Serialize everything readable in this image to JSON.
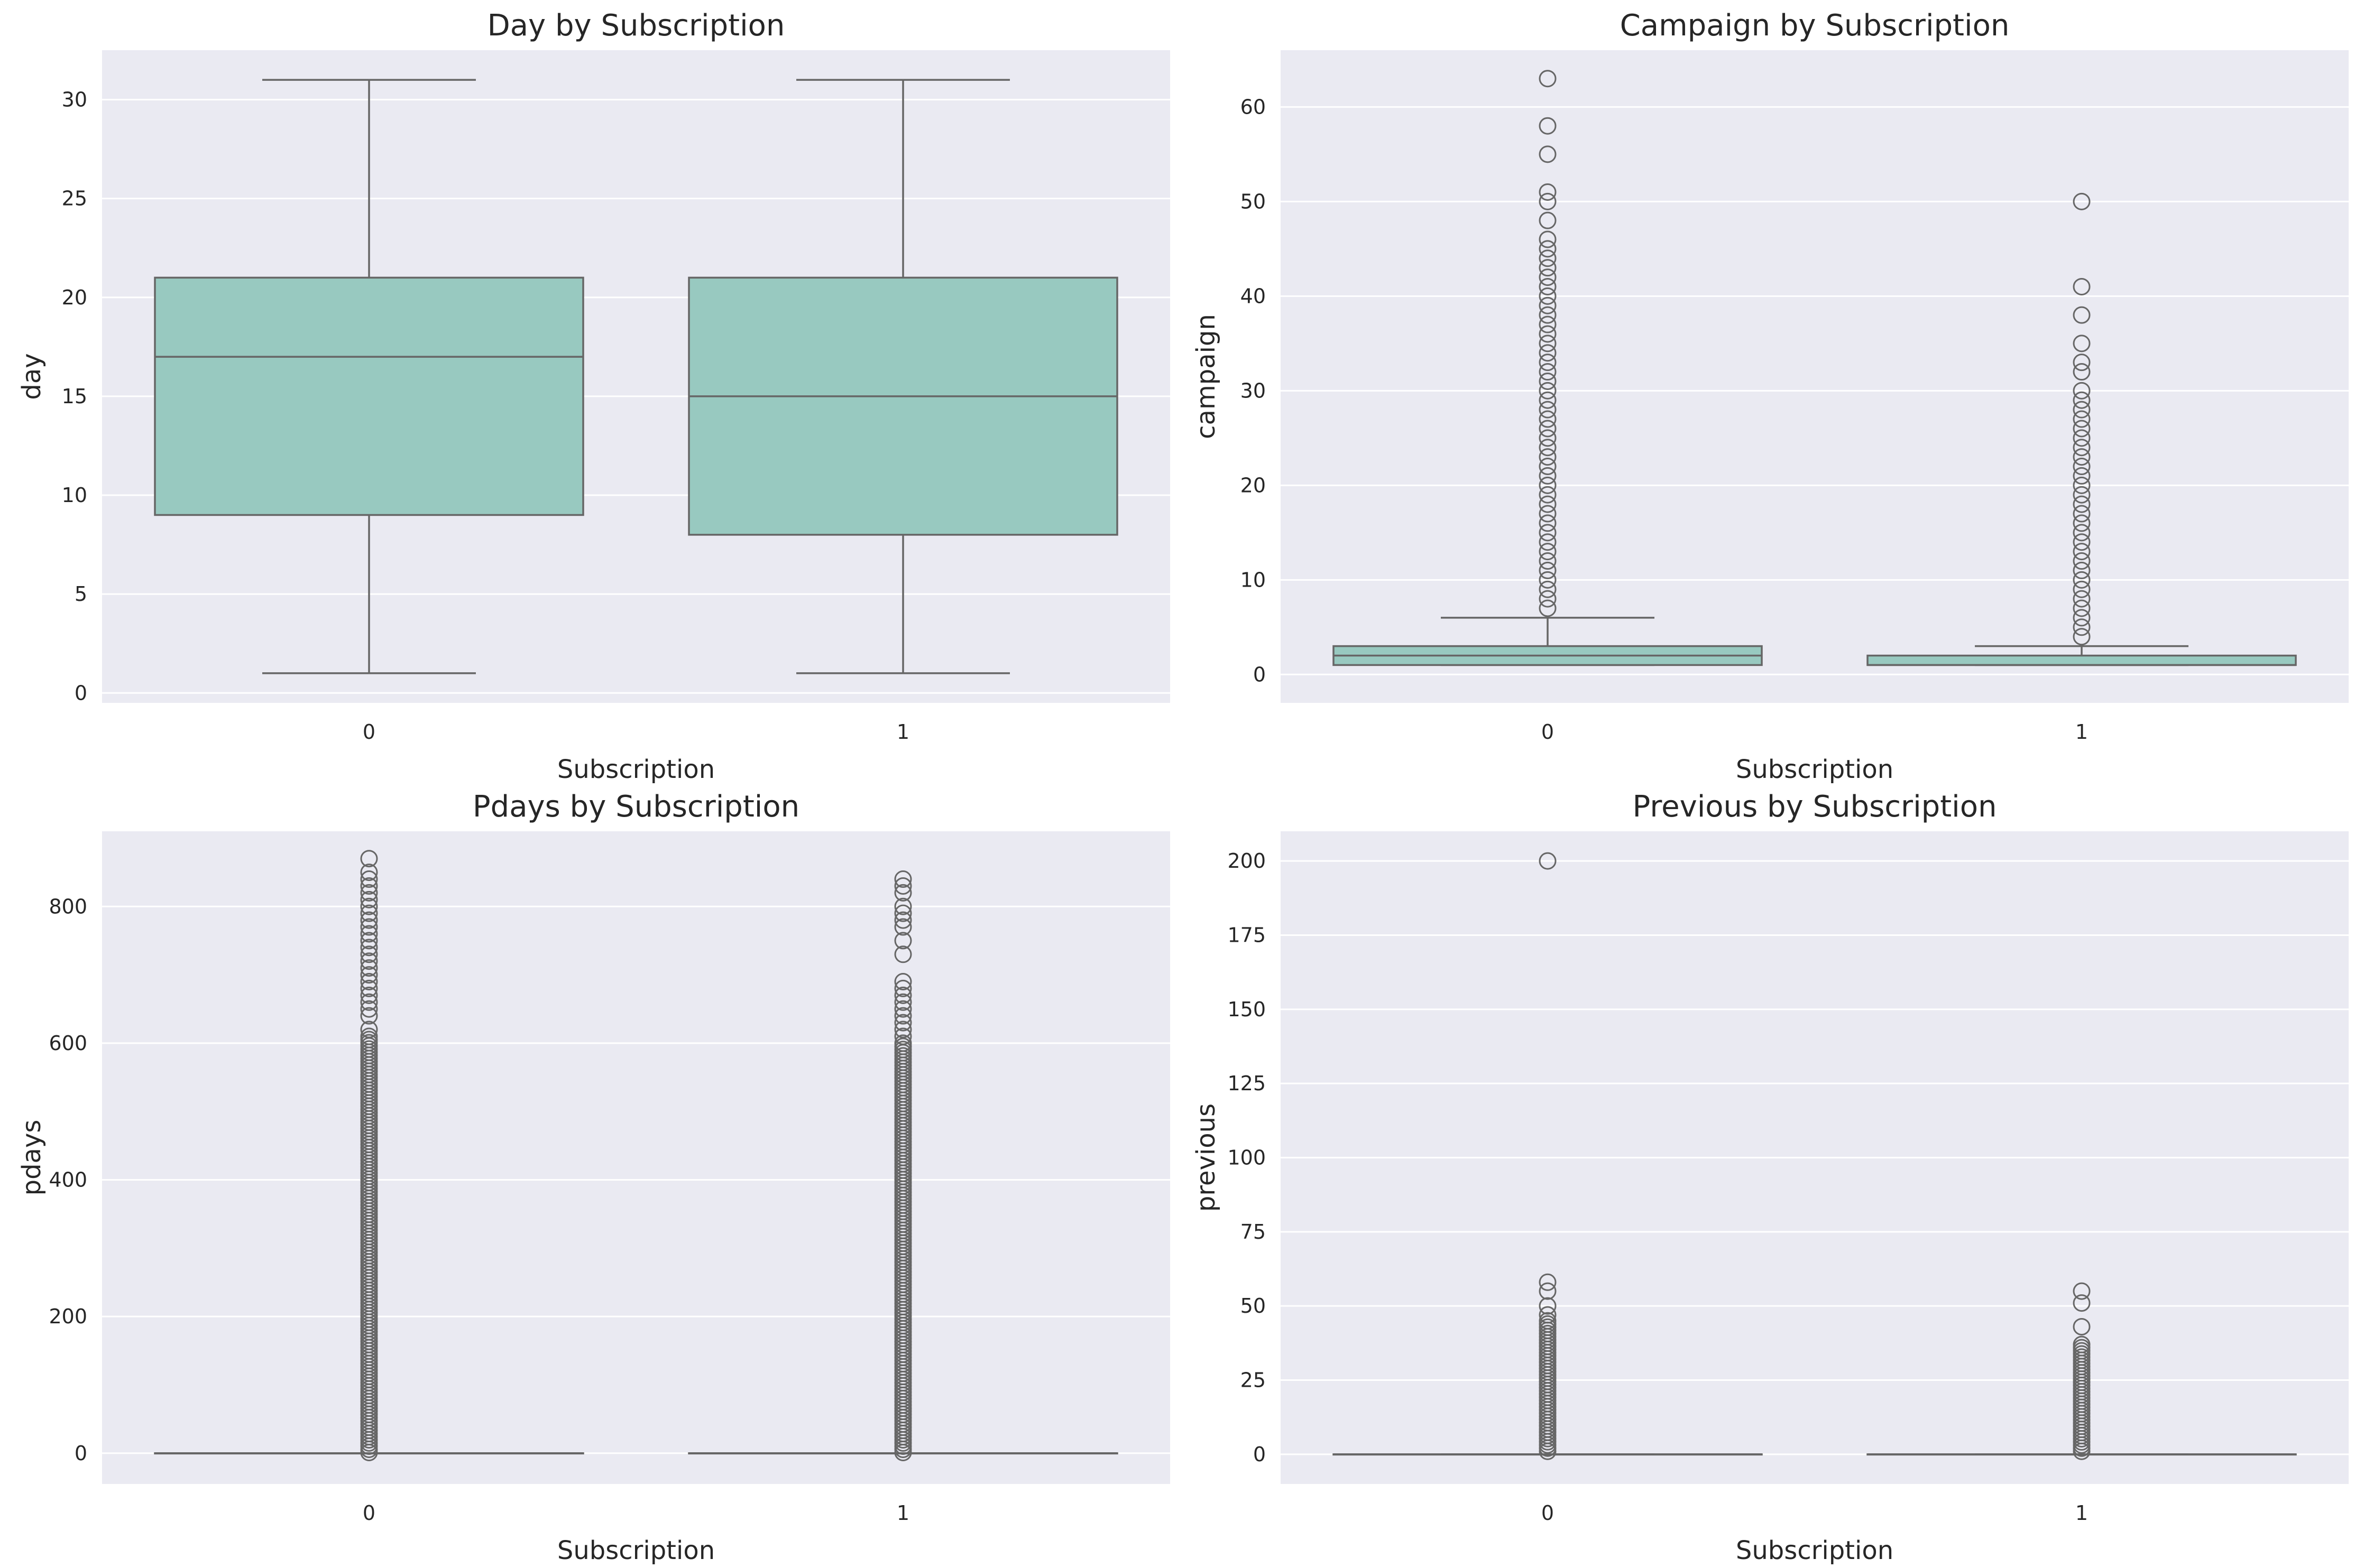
{
  "chart_data": [
    {
      "type": "box",
      "title": "Day by Subscription",
      "xlabel": "Subscription",
      "ylabel": "day",
      "categories": [
        "0",
        "1"
      ],
      "ylim": [
        -0.5,
        32.5
      ],
      "yticks": [
        0,
        5,
        10,
        15,
        20,
        25,
        30
      ],
      "ytick_labels": [
        "0",
        "5",
        "10",
        "15",
        "20",
        "25",
        "30"
      ],
      "boxes": [
        {
          "category": "0",
          "whisker_low": 1,
          "q1": 9,
          "median": 17,
          "q3": 21,
          "whisker_high": 31,
          "outliers": []
        },
        {
          "category": "1",
          "whisker_low": 1,
          "q1": 8,
          "median": 15,
          "q3": 21,
          "whisker_high": 31,
          "outliers": []
        }
      ]
    },
    {
      "type": "box",
      "title": "Campaign by Subscription",
      "xlabel": "Subscription",
      "ylabel": "campaign",
      "categories": [
        "0",
        "1"
      ],
      "ylim": [
        -3,
        66
      ],
      "yticks": [
        0,
        10,
        20,
        30,
        40,
        50,
        60
      ],
      "ytick_labels": [
        "0",
        "10",
        "20",
        "30",
        "40",
        "50",
        "60"
      ],
      "boxes": [
        {
          "category": "0",
          "whisker_low": 1,
          "q1": 1,
          "median": 2,
          "q3": 3,
          "whisker_high": 6,
          "outliers": [
            7,
            8,
            9,
            10,
            11,
            12,
            13,
            14,
            15,
            16,
            17,
            18,
            19,
            20,
            21,
            22,
            23,
            24,
            25,
            26,
            27,
            28,
            29,
            30,
            31,
            32,
            33,
            34,
            35,
            36,
            37,
            38,
            39,
            40,
            41,
            42,
            43,
            44,
            45,
            46,
            48,
            50,
            51,
            55,
            58,
            63
          ]
        },
        {
          "category": "1",
          "whisker_low": 1,
          "q1": 1,
          "median": 1,
          "q3": 2,
          "whisker_high": 3,
          "outliers": [
            4,
            5,
            6,
            7,
            8,
            9,
            10,
            11,
            12,
            13,
            14,
            15,
            16,
            17,
            18,
            19,
            20,
            21,
            22,
            23,
            24,
            25,
            26,
            27,
            28,
            29,
            30,
            32,
            33,
            35,
            38,
            41,
            50
          ]
        }
      ]
    },
    {
      "type": "box",
      "title": "Pdays by Subscription",
      "xlabel": "Subscription",
      "ylabel": "pdays",
      "categories": [
        "0",
        "1"
      ],
      "ylim": [
        -45,
        910
      ],
      "yticks": [
        0,
        200,
        400,
        600,
        800
      ],
      "ytick_labels": [
        "0",
        "200",
        "400",
        "600",
        "800"
      ],
      "boxes": [
        {
          "category": "0",
          "whisker_low": 0,
          "q1": 0,
          "median": 0,
          "q3": 0,
          "whisker_high": 0,
          "outlier_range": [
            1,
            610
          ],
          "outliers": [
            620,
            640,
            650,
            660,
            670,
            680,
            690,
            700,
            710,
            720,
            730,
            740,
            750,
            760,
            770,
            780,
            790,
            800,
            810,
            820,
            830,
            840,
            850,
            870
          ]
        },
        {
          "category": "1",
          "whisker_low": 0,
          "q1": 0,
          "median": 0,
          "q3": 0,
          "whisker_high": 0,
          "outlier_range": [
            1,
            600
          ],
          "outliers": [
            610,
            620,
            630,
            640,
            650,
            660,
            670,
            680,
            690,
            730,
            750,
            770,
            780,
            790,
            800,
            820,
            830,
            840
          ]
        }
      ]
    },
    {
      "type": "box",
      "title": "Previous by Subscription",
      "xlabel": "Subscription",
      "ylabel": "previous",
      "categories": [
        "0",
        "1"
      ],
      "ylim": [
        -10,
        210
      ],
      "yticks": [
        0,
        25,
        50,
        75,
        100,
        125,
        150,
        175,
        200
      ],
      "ytick_labels": [
        "0",
        "25",
        "50",
        "75",
        "100",
        "125",
        "150",
        "175",
        "200"
      ],
      "boxes": [
        {
          "category": "0",
          "whisker_low": 0,
          "q1": 0,
          "median": 0,
          "q3": 0,
          "whisker_high": 0,
          "outlier_range": [
            1,
            45
          ],
          "outliers": [
            47,
            50,
            55,
            58,
            200
          ]
        },
        {
          "category": "1",
          "whisker_low": 0,
          "q1": 0,
          "median": 0,
          "q3": 0,
          "whisker_high": 0,
          "outlier_range": [
            1,
            37
          ],
          "outliers": [
            43,
            51,
            55
          ]
        }
      ]
    }
  ],
  "colors": {
    "box_fill": "#98c9c0",
    "line": "#666666",
    "plot_bg": "#eaeaf2",
    "grid": "#ffffff",
    "figure_bg": "#ffffff"
  }
}
